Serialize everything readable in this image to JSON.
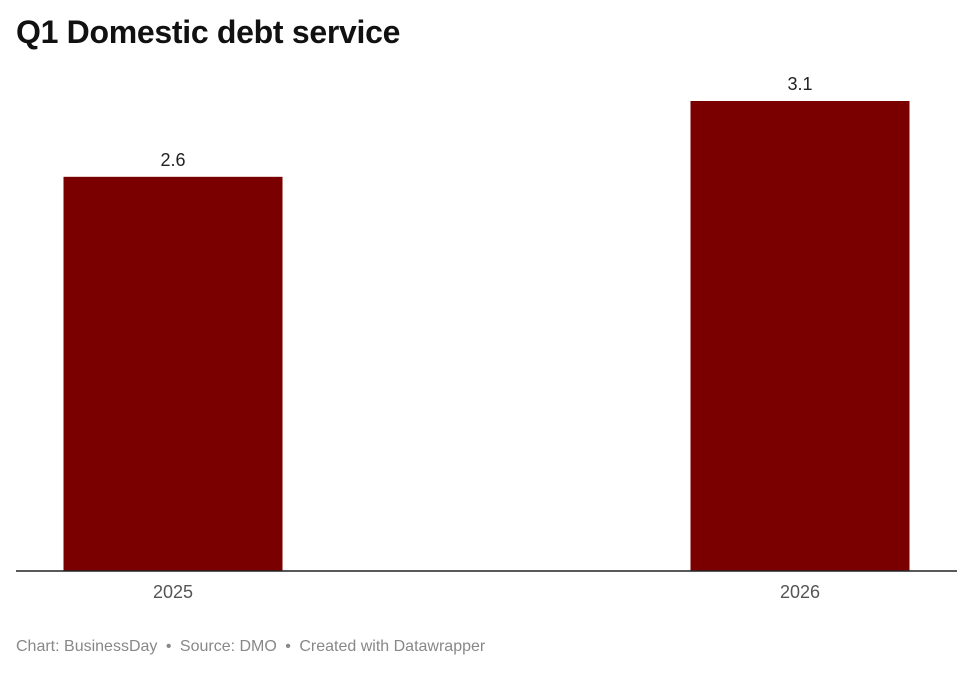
{
  "chart_data": {
    "type": "bar",
    "title": "Q1 Domestic debt service",
    "categories": [
      "2025",
      "2026"
    ],
    "values": [
      2.6,
      3.1
    ],
    "data_labels": [
      "2.6",
      "3.1"
    ],
    "xlabel": "",
    "ylabel": "",
    "ylim": [
      0,
      3.1
    ],
    "grid": false,
    "legend": "none",
    "bar_color": "#7a0000"
  },
  "footer": {
    "chart_credit": "Chart: BusinessDay",
    "source": "Source: DMO",
    "created_with": "Created with Datawrapper",
    "separator": "•"
  }
}
